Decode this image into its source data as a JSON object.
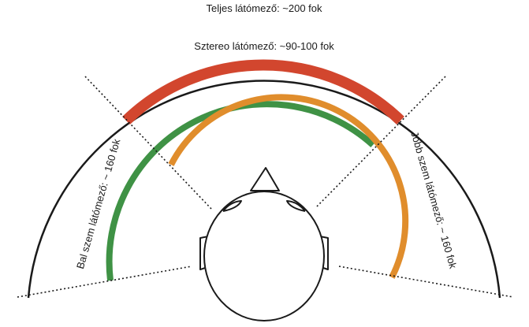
{
  "labels": {
    "total": "Teljes látómező: ~200 fok",
    "stereo": "Sztereo látómező: ~90-100 fok",
    "left_eye": "Bal szem látómező: ~ 160 fok",
    "right_eye": "Jobb szem látómező: ~ 160 fok"
  },
  "fields": {
    "total_deg": 200,
    "stereo_deg": 95,
    "left_eye_deg": 160,
    "right_eye_deg": 160
  },
  "colors": {
    "stereo": "#d2462e",
    "left_eye": "#3f9245",
    "right_eye": "#e08d2c",
    "outline": "#1a1a1a"
  }
}
